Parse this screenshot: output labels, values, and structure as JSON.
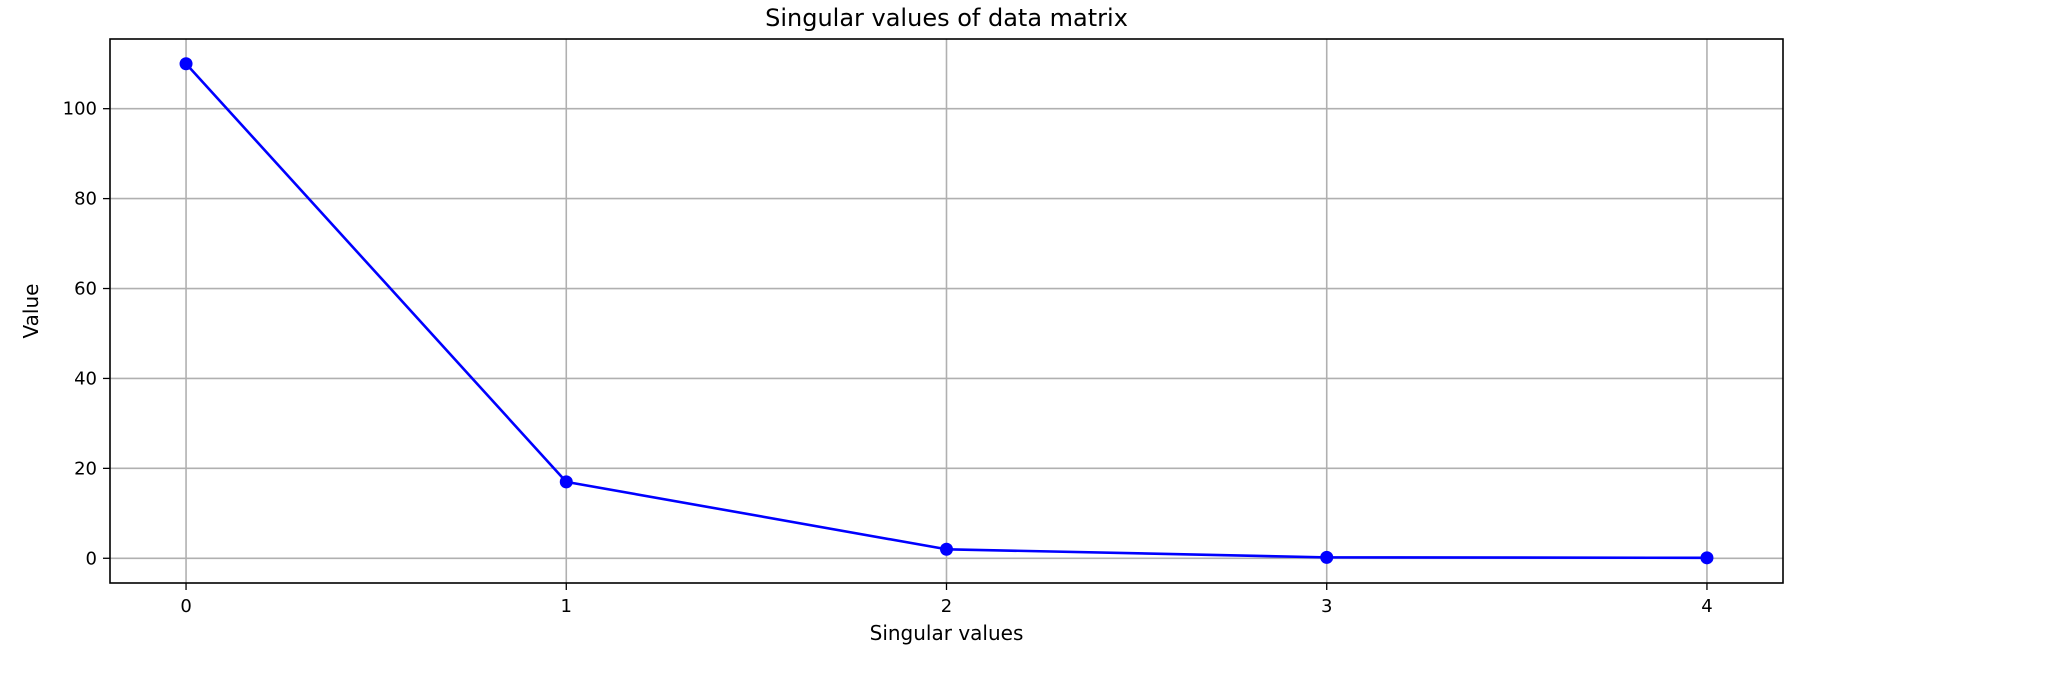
{
  "chart_data": {
    "type": "line",
    "title": "Singular values of data matrix",
    "xlabel": "Singular values",
    "ylabel": "Value",
    "x": [
      0,
      1,
      2,
      3,
      4
    ],
    "series": [
      {
        "values": [
          110,
          17,
          2,
          0.2,
          0.1
        ],
        "color": "#0000ff"
      }
    ],
    "xlim": [
      -0.2,
      4.2
    ],
    "ylim": [
      -5.5,
      115.5
    ],
    "xticks": [
      0,
      1,
      2,
      3,
      4
    ],
    "yticks": [
      0,
      20,
      40,
      60,
      80,
      100
    ],
    "grid": true,
    "markers": true
  }
}
